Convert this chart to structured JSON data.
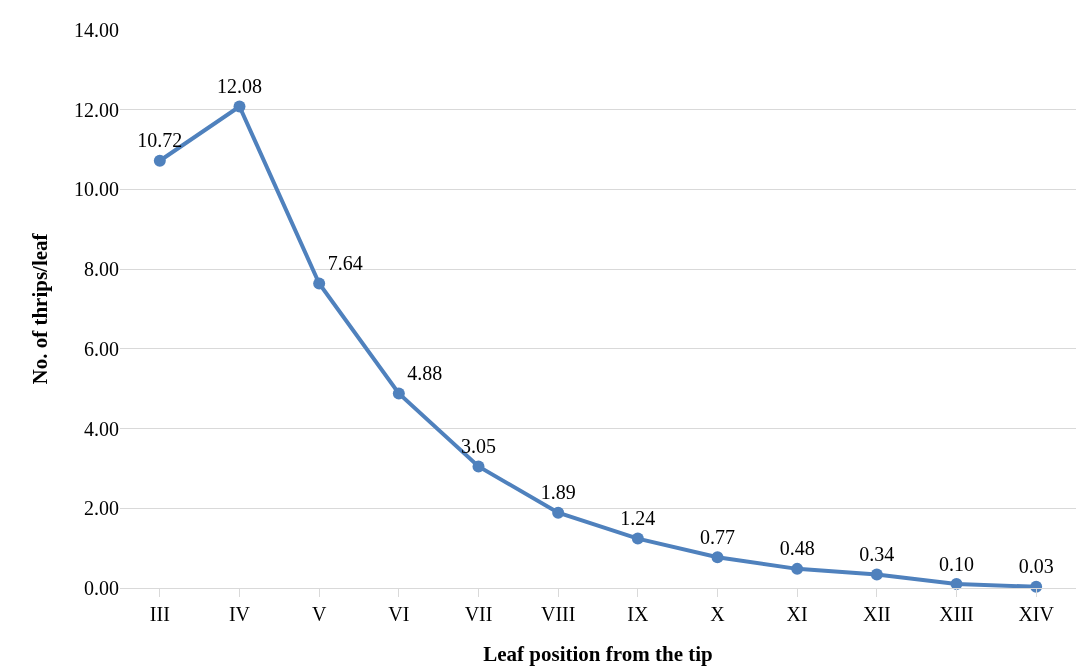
{
  "chart_data": {
    "type": "line",
    "xlabel": "Leaf position from the tip",
    "ylabel": "No. of thrips/leaf",
    "categories": [
      "III",
      "IV",
      "V",
      "VI",
      "VII",
      "VIII",
      "IX",
      "X",
      "XI",
      "XII",
      "XIII",
      "XIV"
    ],
    "values": [
      10.72,
      12.08,
      7.64,
      4.88,
      3.05,
      1.89,
      1.24,
      0.77,
      0.48,
      0.34,
      0.1,
      0.03
    ],
    "value_labels": [
      "10.72",
      "12.08",
      "7.64",
      "4.88",
      "3.05",
      "1.89",
      "1.24",
      "0.77",
      "0.48",
      "0.34",
      "0.10",
      "0.03"
    ],
    "color": "#4f81bd",
    "marker": "circle",
    "line_style": "solid",
    "grid": "y",
    "ylim": [
      0,
      14
    ],
    "yticks": [
      {
        "value": 0,
        "label": "0.00"
      },
      {
        "value": 2,
        "label": "2.00"
      },
      {
        "value": 4,
        "label": "4.00"
      },
      {
        "value": 6,
        "label": "6.00"
      },
      {
        "value": 8,
        "label": "8.00"
      },
      {
        "value": 10,
        "label": "10.00"
      },
      {
        "value": 12,
        "label": "12.00"
      },
      {
        "value": 14,
        "label": "14.00"
      }
    ]
  }
}
